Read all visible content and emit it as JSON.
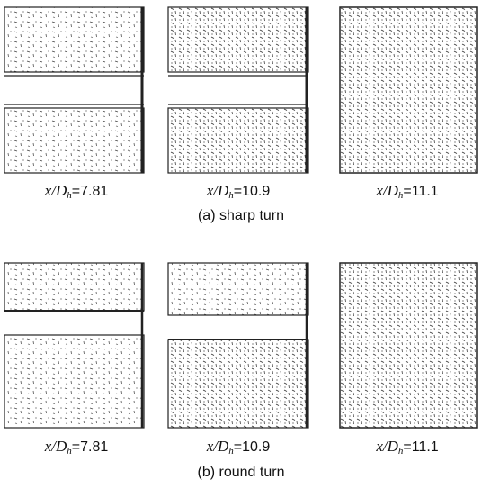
{
  "figures": [
    {
      "caption": "(a) sharp turn",
      "panels": [
        {
          "label": {
            "variable": "x/D",
            "subscript": "h",
            "value": "=7.81"
          }
        },
        {
          "label": {
            "variable": "x/D",
            "subscript": "h",
            "value": "=10.9"
          }
        },
        {
          "label": {
            "variable": "x/D",
            "subscript": "h",
            "value": "=11.1"
          }
        }
      ]
    },
    {
      "caption": "(b) round turn",
      "panels": [
        {
          "label": {
            "variable": "x/D",
            "subscript": "h",
            "value": "=7.81"
          }
        },
        {
          "label": {
            "variable": "x/D",
            "subscript": "h",
            "value": "=10.9"
          }
        },
        {
          "label": {
            "variable": "x/D",
            "subscript": "h",
            "value": "=11.1"
          }
        }
      ]
    }
  ]
}
